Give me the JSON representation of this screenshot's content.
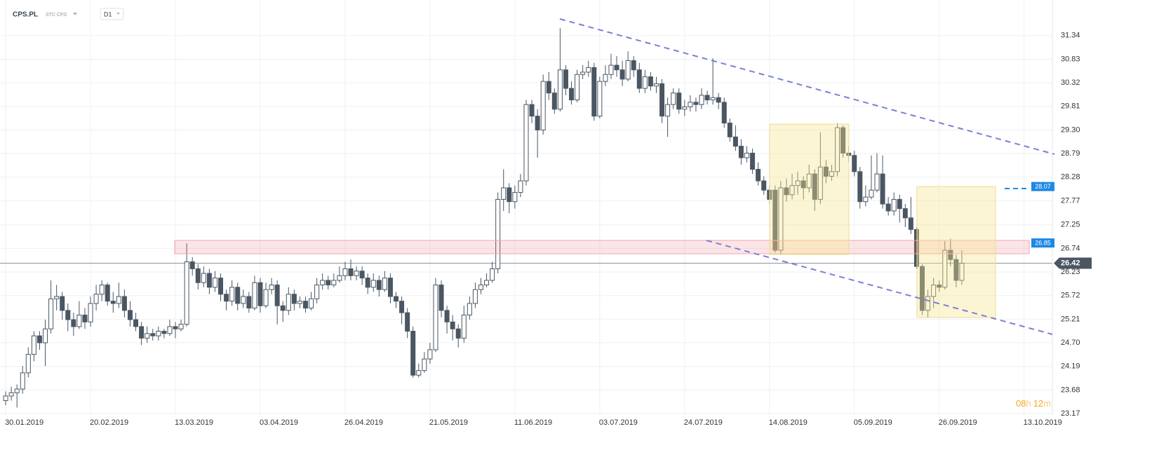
{
  "header": {
    "symbol": "CPS.PL",
    "market": "STC CFD",
    "interval": "D1"
  },
  "countdown": {
    "hours": "08",
    "hours_unit": "h",
    "minutes": "12",
    "minutes_unit": "m"
  },
  "chart_data": {
    "type": "candlestick",
    "xlim": [
      -1,
      185
    ],
    "ylim": [
      23.14,
      32.11
    ],
    "xticks": [
      {
        "value": 0,
        "label": "30.01.2019"
      },
      {
        "value": 15,
        "label": "20.02.2019"
      },
      {
        "value": 30,
        "label": "13.03.2019"
      },
      {
        "value": 45,
        "label": "03.04.2019"
      },
      {
        "value": 60,
        "label": "26.04.2019"
      },
      {
        "value": 75,
        "label": "21.05.2019"
      },
      {
        "value": 90,
        "label": "11.06.2019"
      },
      {
        "value": 105,
        "label": "03.07.2019"
      },
      {
        "value": 120,
        "label": "24.07.2019"
      },
      {
        "value": 135,
        "label": "14.08.2019"
      },
      {
        "value": 150,
        "label": "05.09.2019"
      },
      {
        "value": 165,
        "label": "26.09.2019"
      },
      {
        "value": 180,
        "label": "13.10.2019"
      }
    ],
    "yticks": [
      31.34,
      30.83,
      30.32,
      29.81,
      29.3,
      28.79,
      28.28,
      27.77,
      27.25,
      26.74,
      26.23,
      25.72,
      25.21,
      24.7,
      24.19,
      23.68,
      23.17
    ],
    "ytick_labels": [
      "31.34",
      "30.83",
      "30.32",
      "29.81",
      "29.30",
      "28.79",
      "28.28",
      "27.77",
      "27.25",
      "26.74",
      "26.23",
      "25.72",
      "25.21",
      "24.70",
      "24.19",
      "23.68",
      "23.17"
    ],
    "up_color": "#ffffff",
    "down_color": "#4a5662",
    "edge_color": "#4a5662",
    "last_price": 26.42,
    "levels": [
      {
        "value": 28.07,
        "label": "28.07"
      },
      {
        "value": 26.85,
        "label": "26.85"
      }
    ],
    "ohlc": [
      [
        23.45,
        23.65,
        23.35,
        23.55
      ],
      [
        23.55,
        23.75,
        23.45,
        23.62
      ],
      [
        23.62,
        23.8,
        23.3,
        23.7
      ],
      [
        23.7,
        24.2,
        23.6,
        24.05
      ],
      [
        24.05,
        24.6,
        23.95,
        24.45
      ],
      [
        24.45,
        24.95,
        24.3,
        24.85
      ],
      [
        24.85,
        24.95,
        24.55,
        24.7
      ],
      [
        24.7,
        25.2,
        24.2,
        25.0
      ],
      [
        25.0,
        26.05,
        24.9,
        25.65
      ],
      [
        25.65,
        25.95,
        25.4,
        25.7
      ],
      [
        25.7,
        25.8,
        25.2,
        25.4
      ],
      [
        25.4,
        25.55,
        24.95,
        25.2
      ],
      [
        25.2,
        25.35,
        24.85,
        25.05
      ],
      [
        25.05,
        25.6,
        25.0,
        25.3
      ],
      [
        25.3,
        25.45,
        25.0,
        25.15
      ],
      [
        25.15,
        25.7,
        25.05,
        25.55
      ],
      [
        25.55,
        25.95,
        25.4,
        25.75
      ],
      [
        25.75,
        26.05,
        25.6,
        25.95
      ],
      [
        25.95,
        26.0,
        25.5,
        25.6
      ],
      [
        25.6,
        25.8,
        25.35,
        25.55
      ],
      [
        25.55,
        26.0,
        25.45,
        25.7
      ],
      [
        25.7,
        25.85,
        25.25,
        25.4
      ],
      [
        25.4,
        25.6,
        25.05,
        25.2
      ],
      [
        25.2,
        25.35,
        24.95,
        25.05
      ],
      [
        25.05,
        25.15,
        24.65,
        24.8
      ],
      [
        24.8,
        25.05,
        24.7,
        24.9
      ],
      [
        24.9,
        25.0,
        24.75,
        24.85
      ],
      [
        24.85,
        25.05,
        24.75,
        24.95
      ],
      [
        24.95,
        25.0,
        24.8,
        24.9
      ],
      [
        24.9,
        25.2,
        24.85,
        25.05
      ],
      [
        25.05,
        25.15,
        24.8,
        25.0
      ],
      [
        25.0,
        25.2,
        24.95,
        25.1
      ],
      [
        25.1,
        26.85,
        25.05,
        26.45
      ],
      [
        26.45,
        26.55,
        26.15,
        26.3
      ],
      [
        26.3,
        26.4,
        25.85,
        26.0
      ],
      [
        26.0,
        26.35,
        25.9,
        26.2
      ],
      [
        26.2,
        26.3,
        25.75,
        25.9
      ],
      [
        25.9,
        26.25,
        25.8,
        26.1
      ],
      [
        26.1,
        26.2,
        25.6,
        25.75
      ],
      [
        25.75,
        25.85,
        25.4,
        25.6
      ],
      [
        25.6,
        26.05,
        25.5,
        25.9
      ],
      [
        25.9,
        26.0,
        25.4,
        25.55
      ],
      [
        25.55,
        25.85,
        25.45,
        25.7
      ],
      [
        25.7,
        25.8,
        25.35,
        25.45
      ],
      [
        25.45,
        26.15,
        25.4,
        26.0
      ],
      [
        26.0,
        26.1,
        25.35,
        25.5
      ],
      [
        25.5,
        26.0,
        25.45,
        25.85
      ],
      [
        25.85,
        26.1,
        25.75,
        25.95
      ],
      [
        25.95,
        26.05,
        25.1,
        25.5
      ],
      [
        25.5,
        25.6,
        25.15,
        25.4
      ],
      [
        25.4,
        25.9,
        25.3,
        25.75
      ],
      [
        25.75,
        25.85,
        25.4,
        25.55
      ],
      [
        25.55,
        25.7,
        25.45,
        25.6
      ],
      [
        25.6,
        25.7,
        25.35,
        25.45
      ],
      [
        25.45,
        25.8,
        25.4,
        25.65
      ],
      [
        25.65,
        26.1,
        25.55,
        25.95
      ],
      [
        25.95,
        26.2,
        25.85,
        26.05
      ],
      [
        26.05,
        26.15,
        25.85,
        25.95
      ],
      [
        25.95,
        26.2,
        25.9,
        26.05
      ],
      [
        26.05,
        26.35,
        26.0,
        26.15
      ],
      [
        26.15,
        26.45,
        26.05,
        26.3
      ],
      [
        26.3,
        26.5,
        26.05,
        26.15
      ],
      [
        26.15,
        26.35,
        26.05,
        26.25
      ],
      [
        26.25,
        26.35,
        25.95,
        26.1
      ],
      [
        26.1,
        26.2,
        25.75,
        25.9
      ],
      [
        25.9,
        26.2,
        25.8,
        26.05
      ],
      [
        26.05,
        26.15,
        25.7,
        25.85
      ],
      [
        25.85,
        26.25,
        25.8,
        26.1
      ],
      [
        26.1,
        26.2,
        25.55,
        25.7
      ],
      [
        25.7,
        25.8,
        25.45,
        25.6
      ],
      [
        25.6,
        25.7,
        25.1,
        25.35
      ],
      [
        25.35,
        25.45,
        24.8,
        24.95
      ],
      [
        24.95,
        25.05,
        23.95,
        24.0
      ],
      [
        24.0,
        24.25,
        23.95,
        24.1
      ],
      [
        24.1,
        24.5,
        24.05,
        24.35
      ],
      [
        24.35,
        24.7,
        24.25,
        24.55
      ],
      [
        24.55,
        26.1,
        24.5,
        25.95
      ],
      [
        25.95,
        26.05,
        25.25,
        25.4
      ],
      [
        25.4,
        25.5,
        24.9,
        25.15
      ],
      [
        25.15,
        25.3,
        24.75,
        25.0
      ],
      [
        25.0,
        25.1,
        24.6,
        24.8
      ],
      [
        24.8,
        25.5,
        24.7,
        25.3
      ],
      [
        25.3,
        25.7,
        25.2,
        25.55
      ],
      [
        25.55,
        26.0,
        25.45,
        25.85
      ],
      [
        25.85,
        26.1,
        25.75,
        25.95
      ],
      [
        25.95,
        26.2,
        25.9,
        26.05
      ],
      [
        26.05,
        26.45,
        26.0,
        26.3
      ],
      [
        26.3,
        27.95,
        26.2,
        27.8
      ],
      [
        27.8,
        28.45,
        27.55,
        28.05
      ],
      [
        28.05,
        28.15,
        27.5,
        27.75
      ],
      [
        27.75,
        28.1,
        27.6,
        27.95
      ],
      [
        27.95,
        28.35,
        27.85,
        28.2
      ],
      [
        28.2,
        29.95,
        28.1,
        29.85
      ],
      [
        29.85,
        29.95,
        29.45,
        29.6
      ],
      [
        29.6,
        29.75,
        28.7,
        29.3
      ],
      [
        29.3,
        30.5,
        29.2,
        30.35
      ],
      [
        30.35,
        30.55,
        29.95,
        30.1
      ],
      [
        30.1,
        30.2,
        29.65,
        29.75
      ],
      [
        29.75,
        31.5,
        29.7,
        30.6
      ],
      [
        30.6,
        30.7,
        30.05,
        30.2
      ],
      [
        30.2,
        30.35,
        29.85,
        29.95
      ],
      [
        29.95,
        30.6,
        29.9,
        30.5
      ],
      [
        30.5,
        30.7,
        30.4,
        30.55
      ],
      [
        30.55,
        30.8,
        30.45,
        30.65
      ],
      [
        30.65,
        30.75,
        29.5,
        29.6
      ],
      [
        29.6,
        30.45,
        29.55,
        30.35
      ],
      [
        30.35,
        30.7,
        30.25,
        30.5
      ],
      [
        30.5,
        30.95,
        30.4,
        30.7
      ],
      [
        30.7,
        30.9,
        30.45,
        30.6
      ],
      [
        30.6,
        30.8,
        30.25,
        30.4
      ],
      [
        30.4,
        31.0,
        30.35,
        30.8
      ],
      [
        30.8,
        30.9,
        30.45,
        30.6
      ],
      [
        30.6,
        30.75,
        30.1,
        30.2
      ],
      [
        30.2,
        30.6,
        30.1,
        30.45
      ],
      [
        30.45,
        30.55,
        30.15,
        30.25
      ],
      [
        30.25,
        30.45,
        30.1,
        30.3
      ],
      [
        30.3,
        30.4,
        29.45,
        29.6
      ],
      [
        29.6,
        30.0,
        29.15,
        29.85
      ],
      [
        29.85,
        30.2,
        29.75,
        30.1
      ],
      [
        30.1,
        30.2,
        29.65,
        29.75
      ],
      [
        29.75,
        29.95,
        29.6,
        29.8
      ],
      [
        29.8,
        30.05,
        29.7,
        29.9
      ],
      [
        29.9,
        30.0,
        29.7,
        29.85
      ],
      [
        29.85,
        30.2,
        29.75,
        30.05
      ],
      [
        30.05,
        30.15,
        29.85,
        29.95
      ],
      [
        29.95,
        30.85,
        29.85,
        30.0
      ],
      [
        30.0,
        30.1,
        29.75,
        29.9
      ],
      [
        29.9,
        30.0,
        29.35,
        29.45
      ],
      [
        29.45,
        29.55,
        29.05,
        29.15
      ],
      [
        29.15,
        29.4,
        28.85,
        28.95
      ],
      [
        28.95,
        29.1,
        28.55,
        28.7
      ],
      [
        28.7,
        28.95,
        28.6,
        28.8
      ],
      [
        28.8,
        28.9,
        28.35,
        28.45
      ],
      [
        28.45,
        28.6,
        28.1,
        28.2
      ],
      [
        28.2,
        28.3,
        27.9,
        28.0
      ],
      [
        28.0,
        28.1,
        27.7,
        27.8
      ],
      [
        28.0,
        28.1,
        26.65,
        26.7
      ],
      [
        26.7,
        28.2,
        26.6,
        28.05
      ],
      [
        28.05,
        28.25,
        27.75,
        27.9
      ],
      [
        27.9,
        28.35,
        27.8,
        28.1
      ],
      [
        28.1,
        28.4,
        27.9,
        28.2
      ],
      [
        28.2,
        28.3,
        27.8,
        28.05
      ],
      [
        28.05,
        28.55,
        27.95,
        28.35
      ],
      [
        28.35,
        28.45,
        27.55,
        27.8
      ],
      [
        27.8,
        29.25,
        27.7,
        28.5
      ],
      [
        28.5,
        28.65,
        28.15,
        28.3
      ],
      [
        28.3,
        28.55,
        28.2,
        28.4
      ],
      [
        28.4,
        29.45,
        28.3,
        29.35
      ],
      [
        29.35,
        29.4,
        28.7,
        28.8
      ],
      [
        28.8,
        28.95,
        28.6,
        28.75
      ],
      [
        28.75,
        28.85,
        28.3,
        28.4
      ],
      [
        28.4,
        28.5,
        27.6,
        27.75
      ],
      [
        27.75,
        28.1,
        27.65,
        27.85
      ],
      [
        27.85,
        28.75,
        27.8,
        28.0
      ],
      [
        28.0,
        28.8,
        27.95,
        28.35
      ],
      [
        28.35,
        28.75,
        27.6,
        27.7
      ],
      [
        27.7,
        27.85,
        27.45,
        27.55
      ],
      [
        27.55,
        27.95,
        27.45,
        27.8
      ],
      [
        27.8,
        27.9,
        27.3,
        27.6
      ],
      [
        27.6,
        27.7,
        27.2,
        27.4
      ],
      [
        27.4,
        27.85,
        27.05,
        27.15
      ],
      [
        27.15,
        27.2,
        26.3,
        26.35
      ],
      [
        26.35,
        26.4,
        25.3,
        25.4
      ],
      [
        25.4,
        25.85,
        25.25,
        25.7
      ],
      [
        25.7,
        26.1,
        25.45,
        25.95
      ],
      [
        25.95,
        26.05,
        25.8,
        25.9
      ],
      [
        25.9,
        26.9,
        25.85,
        26.7
      ],
      [
        26.7,
        26.95,
        26.35,
        26.5
      ],
      [
        26.5,
        26.6,
        25.9,
        26.05
      ],
      [
        26.05,
        26.7,
        25.95,
        26.42
      ]
    ]
  }
}
